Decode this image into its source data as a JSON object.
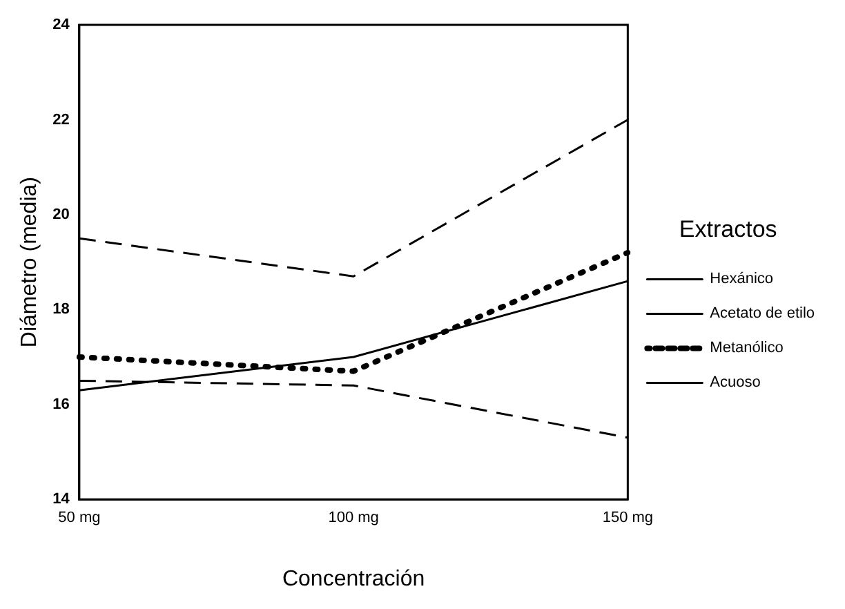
{
  "chart_data": {
    "type": "line",
    "xlabel": "Concentración",
    "ylabel": "Diámetro (media)",
    "legend_title": "Extractos",
    "legend": "right",
    "marker": "none",
    "grid": false,
    "categories": [
      "50 mg",
      "100 mg",
      "150 mg"
    ],
    "ylim": [
      14,
      24
    ],
    "yticks": [
      14,
      16,
      18,
      20,
      22,
      24
    ],
    "series": [
      {
        "name": "Hexánico",
        "color": "#000000",
        "line_style": "dashed",
        "values": [
          16.5,
          16.4,
          15.3
        ]
      },
      {
        "name": "Acetato de etilo",
        "color": "#000000",
        "line_style": "solid",
        "values": [
          16.3,
          17.0,
          18.6
        ]
      },
      {
        "name": "Metanólico",
        "color": "#000000",
        "line_style": "dotted",
        "values": [
          17.0,
          16.7,
          19.2
        ]
      },
      {
        "name": "Acuoso",
        "color": "#000000",
        "line_style": "dashed",
        "values": [
          19.5,
          18.7,
          22.0
        ]
      }
    ]
  }
}
